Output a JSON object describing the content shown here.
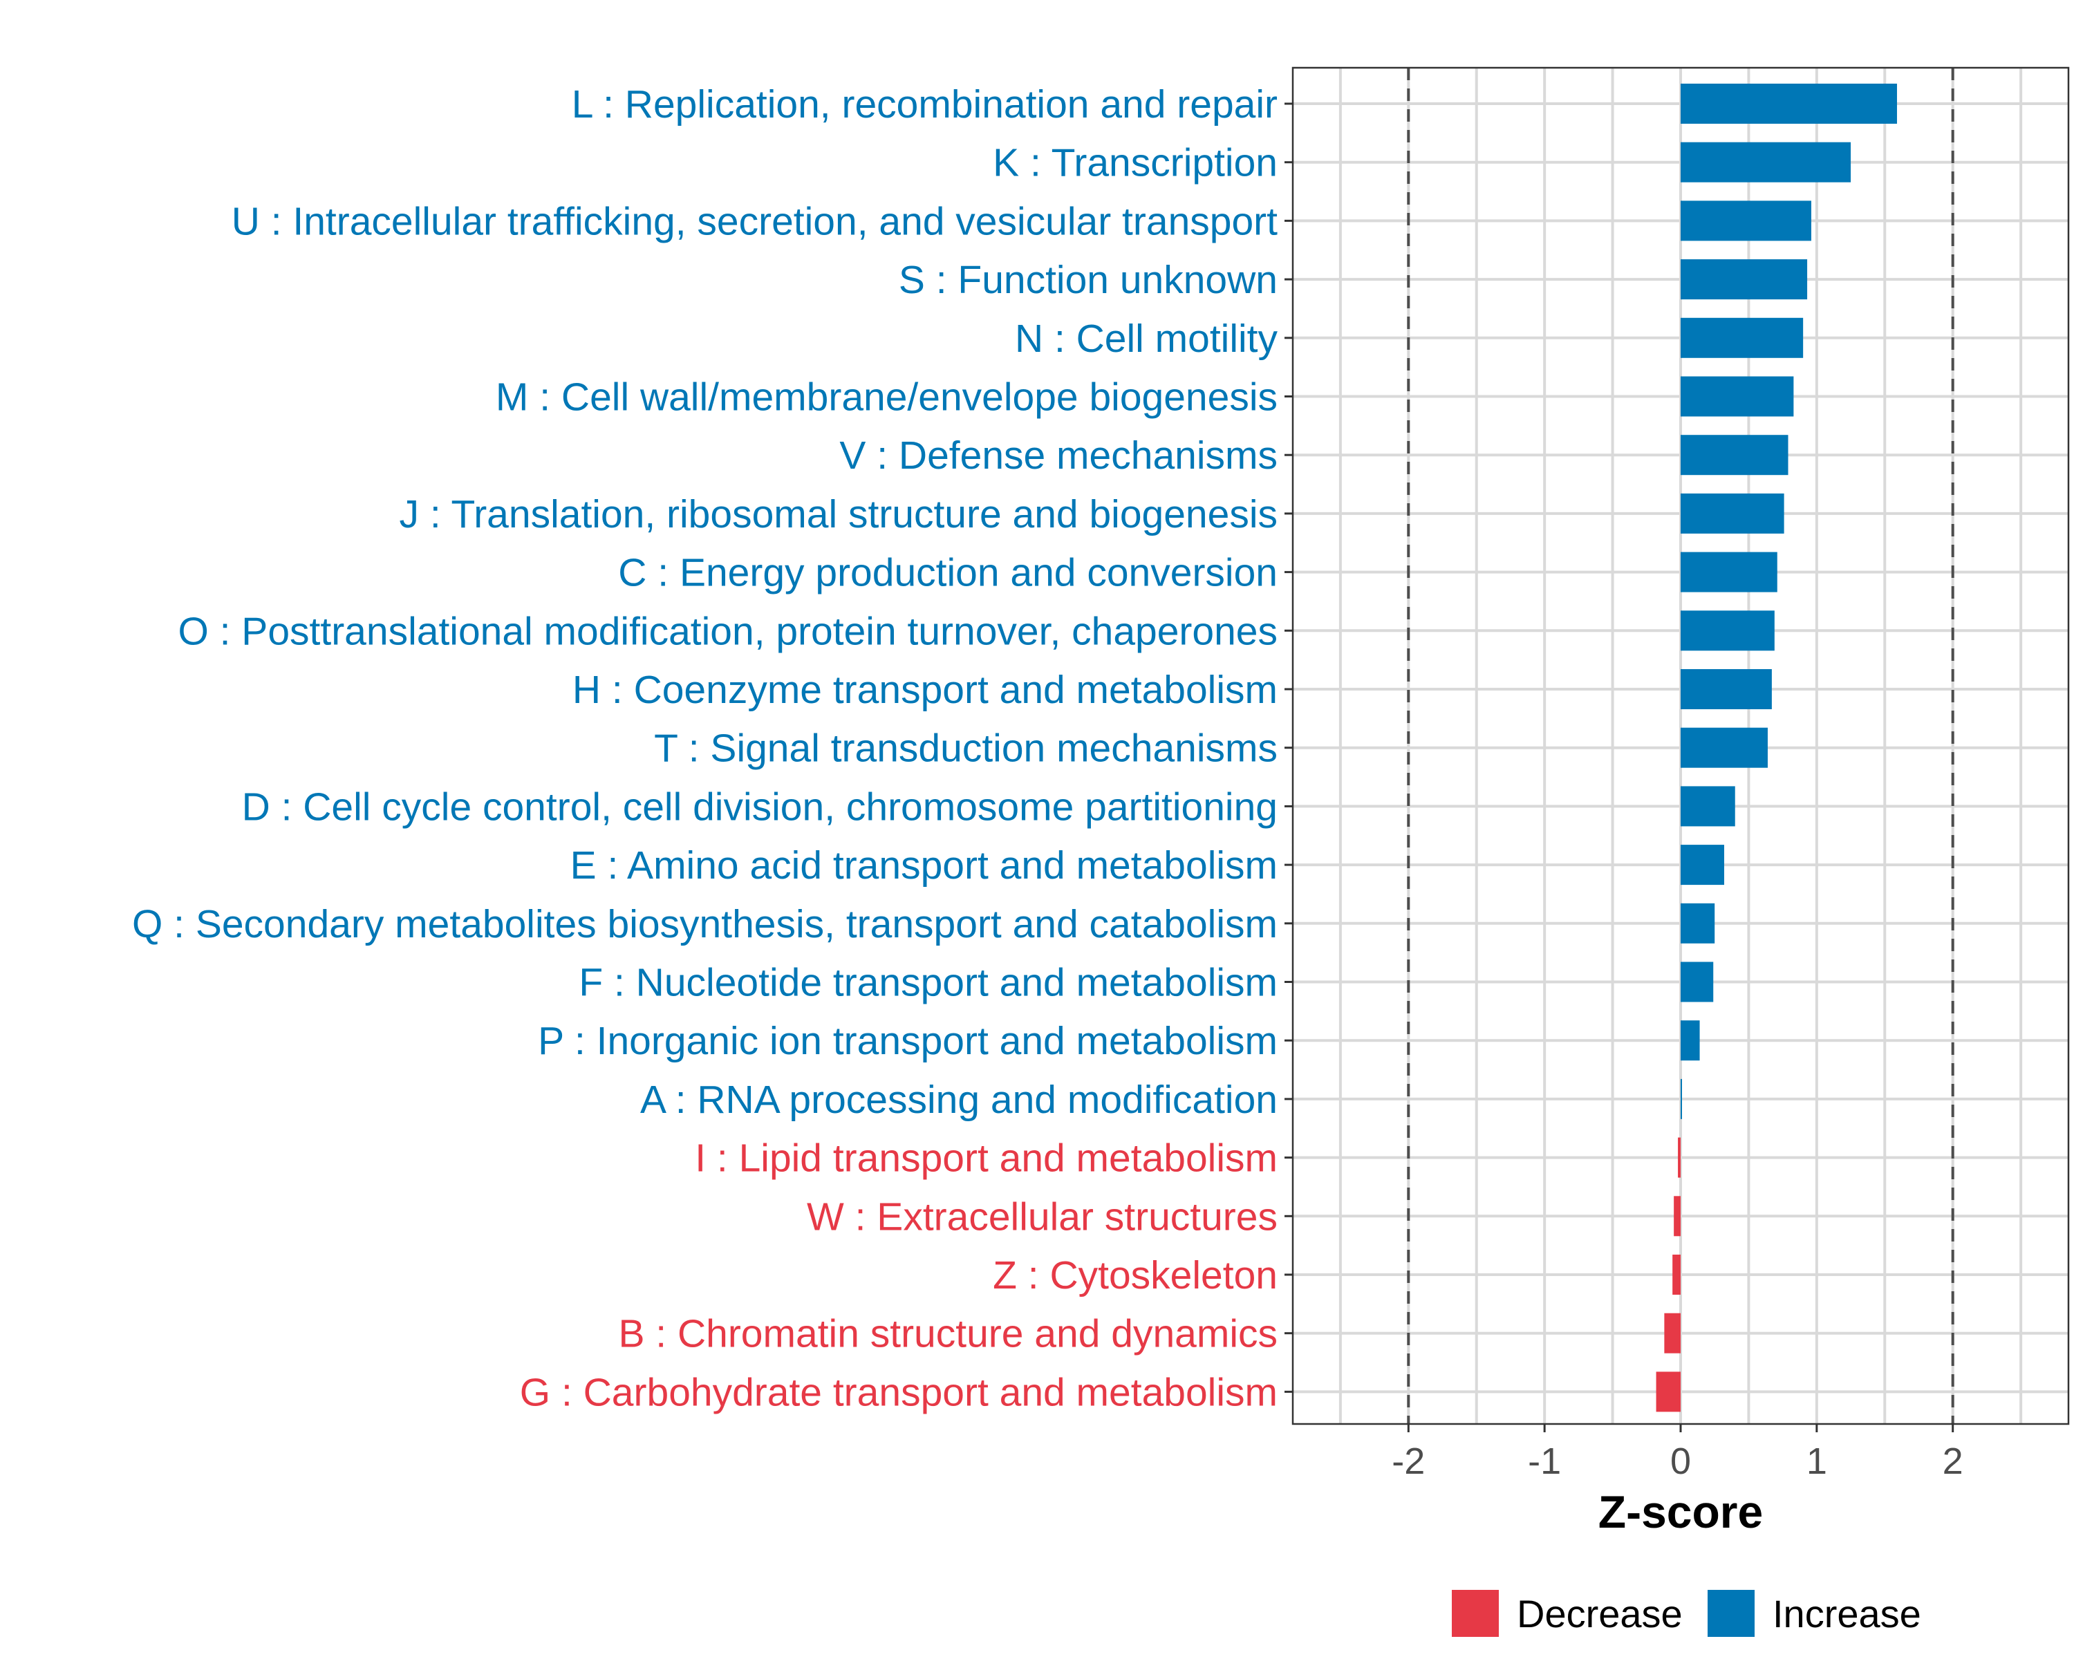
{
  "chart_data": {
    "type": "bar",
    "orientation": "horizontal",
    "xlabel": "Z-score",
    "xlim": [
      -2.85,
      2.85
    ],
    "xticks": [
      -2,
      -1,
      0,
      1,
      2
    ],
    "xtick_labels": [
      "-2",
      "-1",
      "0",
      "1",
      "2"
    ],
    "reference_lines": [
      -2,
      2
    ],
    "grid": true,
    "legend_position": "bottom",
    "colors": {
      "Decrease": "#e63946",
      "Increase": "#0077b6"
    },
    "legend": [
      {
        "label": "Decrease",
        "group": "Decrease"
      },
      {
        "label": "Increase",
        "group": "Increase"
      }
    ],
    "categories": [
      "L : Replication, recombination and repair",
      "K : Transcription",
      "U : Intracellular trafficking, secretion, and vesicular transport",
      "S : Function unknown",
      "N : Cell motility",
      "M : Cell wall/membrane/envelope biogenesis",
      "V : Defense mechanisms",
      "J : Translation, ribosomal structure and biogenesis",
      "C : Energy production and conversion",
      "O : Posttranslational modification, protein turnover, chaperones",
      "H : Coenzyme transport and metabolism",
      "T : Signal transduction mechanisms",
      "D : Cell cycle control, cell division, chromosome partitioning",
      "E : Amino acid transport and metabolism",
      "Q : Secondary metabolites biosynthesis, transport and catabolism",
      "F : Nucleotide transport and metabolism",
      "P : Inorganic ion transport and metabolism",
      "A : RNA processing and modification",
      "I : Lipid transport and metabolism",
      "W : Extracellular structures",
      "Z : Cytoskeleton",
      "B : Chromatin structure and dynamics",
      "G : Carbohydrate transport and metabolism"
    ],
    "values": [
      1.59,
      1.25,
      0.96,
      0.93,
      0.9,
      0.83,
      0.79,
      0.76,
      0.71,
      0.69,
      0.67,
      0.64,
      0.4,
      0.32,
      0.25,
      0.24,
      0.14,
      0.01,
      -0.02,
      -0.05,
      -0.06,
      -0.12,
      -0.18
    ],
    "groups": [
      "Increase",
      "Increase",
      "Increase",
      "Increase",
      "Increase",
      "Increase",
      "Increase",
      "Increase",
      "Increase",
      "Increase",
      "Increase",
      "Increase",
      "Increase",
      "Increase",
      "Increase",
      "Increase",
      "Increase",
      "Increase",
      "Decrease",
      "Decrease",
      "Decrease",
      "Decrease",
      "Decrease"
    ]
  }
}
